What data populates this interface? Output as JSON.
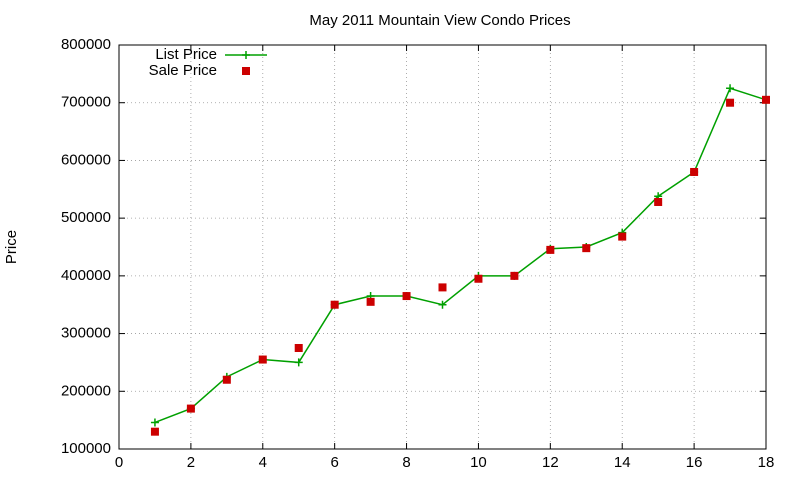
{
  "chart_data": {
    "type": "line",
    "title": "May 2011 Mountain View Condo Prices",
    "ylabel": "Price",
    "x": [
      1,
      2,
      3,
      4,
      5,
      6,
      7,
      8,
      9,
      10,
      11,
      12,
      13,
      14,
      15,
      16,
      17,
      18
    ],
    "series": [
      {
        "name": "List Price",
        "color": "#00a000",
        "style": "linespoints",
        "values": [
          146000,
          170000,
          225000,
          255000,
          250000,
          350000,
          365000,
          365000,
          350000,
          400000,
          400000,
          447000,
          450000,
          475000,
          538000,
          580000,
          725000,
          705000
        ]
      },
      {
        "name": "Sale Price",
        "color": "#cc0000",
        "style": "points",
        "values": [
          130000,
          170000,
          220000,
          255000,
          275000,
          350000,
          355000,
          365000,
          380000,
          395000,
          400000,
          445000,
          448000,
          468000,
          528000,
          580000,
          700000,
          705000
        ]
      }
    ],
    "xlim": [
      0,
      18
    ],
    "xticks": [
      0,
      2,
      4,
      6,
      8,
      10,
      12,
      14,
      16,
      18
    ],
    "ylim": [
      100000,
      800000
    ],
    "yticks": [
      100000,
      200000,
      300000,
      400000,
      500000,
      600000,
      700000,
      800000
    ],
    "grid": true,
    "legend": "top-left"
  }
}
